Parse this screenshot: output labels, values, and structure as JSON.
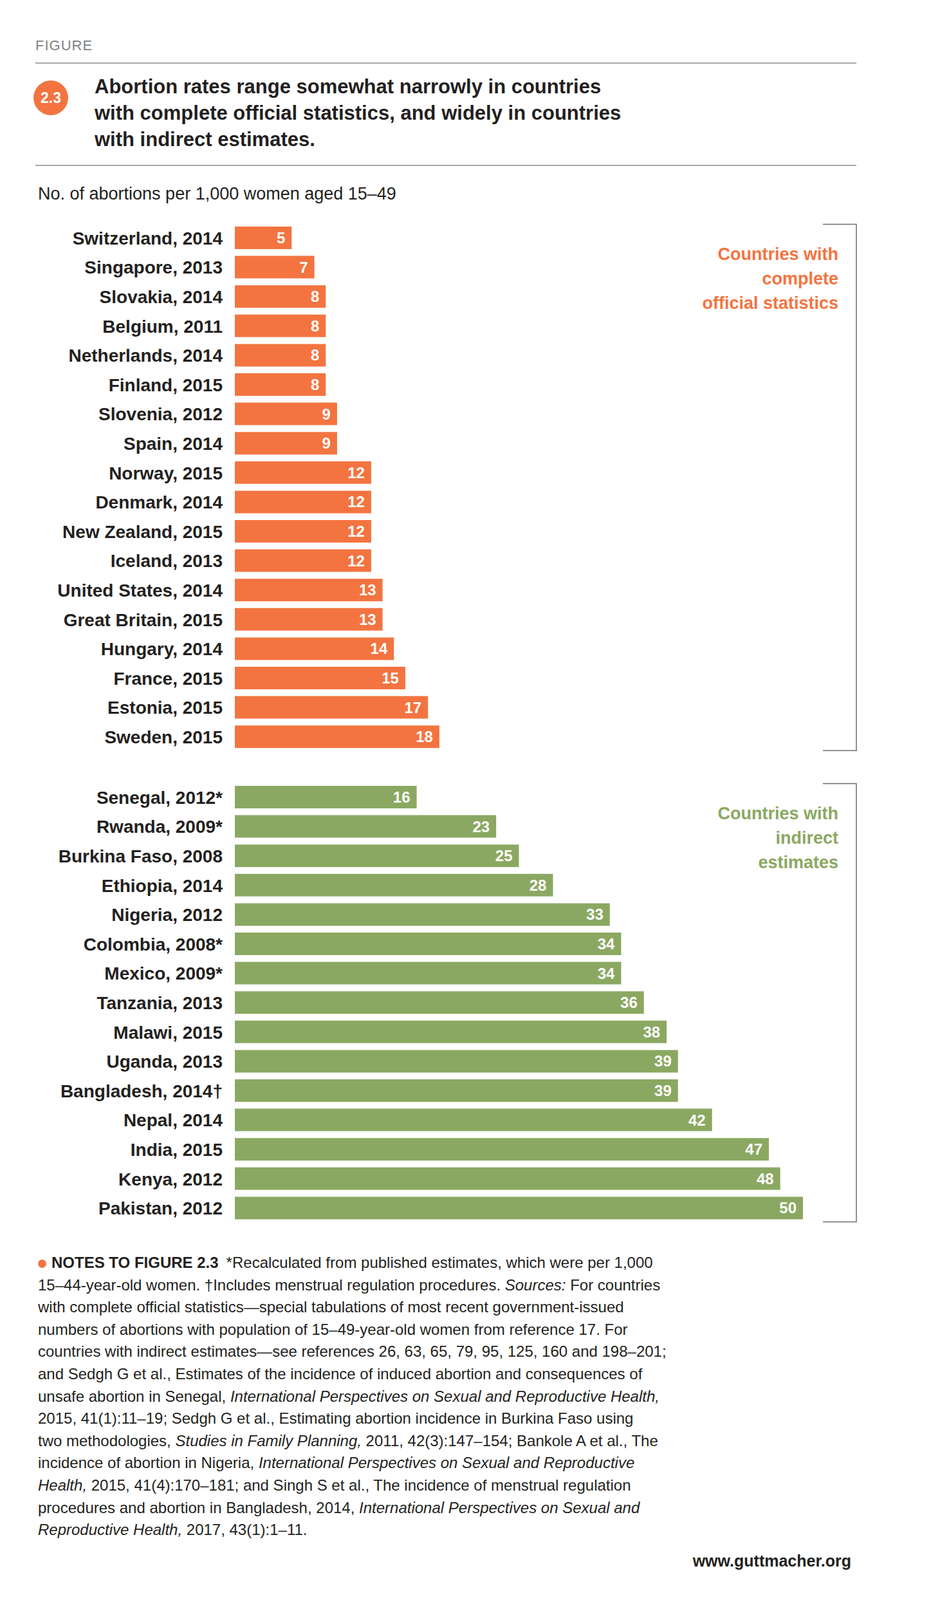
{
  "header": {
    "label": "FIGURE",
    "number": "2.3",
    "title_lines": [
      "Abortion rates range somewhat narrowly in countries",
      "with complete official statistics, and widely in countries",
      "with indirect estimates."
    ],
    "subtitle": "No. of abortions per 1,000 women aged 15–49"
  },
  "chart_data": [
    {
      "type": "bar",
      "orientation": "horizontal",
      "annotation": [
        "Countries with",
        "complete",
        "official statistics"
      ],
      "categories": [
        "Switzerland, 2014",
        "Singapore, 2013",
        "Slovakia, 2014",
        "Belgium, 2011",
        "Netherlands, 2014",
        "Finland, 2015",
        "Slovenia, 2012",
        "Spain, 2014",
        "Norway, 2015",
        "Denmark, 2014",
        "New Zealand, 2015",
        "Iceland, 2013",
        "United States, 2014",
        "Great Britain, 2015",
        "Hungary, 2014",
        "France, 2015",
        "Estonia, 2015",
        "Sweden, 2015"
      ],
      "values": [
        5,
        7,
        8,
        8,
        8,
        8,
        9,
        9,
        12,
        12,
        12,
        12,
        13,
        13,
        14,
        15,
        17,
        18
      ],
      "color": "#f37440",
      "xlim": [
        0,
        50
      ],
      "data_labels": true,
      "tick_labels": "y"
    },
    {
      "type": "bar",
      "orientation": "horizontal",
      "annotation": [
        "Countries with",
        "indirect",
        "estimates"
      ],
      "categories": [
        "Senegal, 2012*",
        "Rwanda, 2009*",
        "Burkina Faso, 2008",
        "Ethiopia, 2014",
        "Nigeria, 2012",
        "Colombia, 2008*",
        "Mexico, 2009*",
        "Tanzania, 2013",
        "Malawi, 2015",
        "Uganda, 2013",
        "Bangladesh, 2014†",
        "Nepal, 2014",
        "India, 2015",
        "Kenya, 2012",
        "Pakistan, 2012"
      ],
      "values": [
        16,
        23,
        25,
        28,
        33,
        34,
        34,
        36,
        38,
        39,
        39,
        42,
        47,
        48,
        50
      ],
      "color": "#8ba862",
      "xlim": [
        0,
        50
      ],
      "data_labels": true,
      "tick_labels": "y"
    }
  ],
  "notes": {
    "heading": "NOTES TO FIGURE 2.3",
    "lines": [
      [
        {
          "text": "*Recalculated from published estimates, which were per 1,000"
        }
      ],
      [
        {
          "text": "15–44-year-old women. †Includes menstrual regulation procedures. "
        },
        {
          "text": "Sources:",
          "italic": true
        },
        {
          "text": " For countries"
        }
      ],
      [
        {
          "text": "with complete official statistics—special tabulations of most recent government-issued"
        }
      ],
      [
        {
          "text": "numbers of abortions with population of 15–49-year-old women from reference 17. For"
        }
      ],
      [
        {
          "text": "countries with indirect estimates—see references 26, 63, 65, 79, 95, 125, 160 and 198–201;"
        }
      ],
      [
        {
          "text": "and Sedgh G et al., Estimates of the incidence of induced abortion and consequences of"
        }
      ],
      [
        {
          "text": "unsafe abortion in Senegal, "
        },
        {
          "text": "International Perspectives on Sexual and Reproductive Health,",
          "italic": true
        }
      ],
      [
        {
          "text": "2015, 41(1):11–19; Sedgh G et al., Estimating abortion incidence in Burkina Faso using"
        }
      ],
      [
        {
          "text": "two methodologies, "
        },
        {
          "text": "Studies in Family Planning,",
          "italic": true
        },
        {
          "text": " 2011, 42(3):147–154; Bankole A et al., The"
        }
      ],
      [
        {
          "text": "incidence of abortion in Nigeria, "
        },
        {
          "text": "International Perspectives on Sexual and Reproductive",
          "italic": true
        }
      ],
      [
        {
          "text": "Health,",
          "italic": true
        },
        {
          "text": " 2015, 41(4):170–181; and Singh S et al., The incidence of menstrual regulation"
        }
      ],
      [
        {
          "text": "procedures and abortion in Bangladesh, 2014, "
        },
        {
          "text": "International Perspectives on Sexual and",
          "italic": true
        }
      ],
      [
        {
          "text": "Reproductive Health,",
          "italic": true
        },
        {
          "text": " 2017, 43(1):1–11."
        }
      ]
    ]
  },
  "footer": "www.guttmacher.org"
}
